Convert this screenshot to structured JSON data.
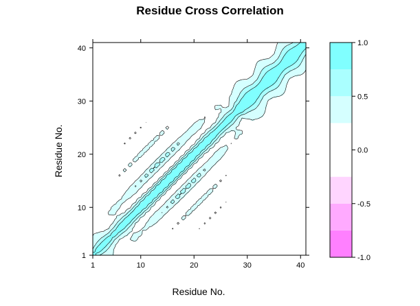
{
  "chart_data": {
    "type": "heatmap",
    "title": "Residue Cross Correlation",
    "xlabel": "Residue No.",
    "ylabel": "Residue No.",
    "x_range": [
      1,
      41
    ],
    "y_range": [
      1,
      41
    ],
    "x_ticks": [
      1,
      10,
      20,
      30,
      40
    ],
    "y_ticks": [
      1,
      10,
      20,
      30,
      40
    ],
    "z_range": [
      -1.0,
      1.0
    ],
    "colorbar": {
      "ticks": [
        1.0,
        0.5,
        0.0,
        -0.5,
        -1.0
      ],
      "tick_labels": [
        "1.0",
        "0.5",
        "0.0",
        "-0.5",
        "-1.0"
      ],
      "levels": [
        {
          "from": -1.0,
          "to": -0.75,
          "color": "#ff80ff"
        },
        {
          "from": -0.75,
          "to": -0.5,
          "color": "#ffaaff"
        },
        {
          "from": -0.5,
          "to": -0.25,
          "color": "#ffd5ff"
        },
        {
          "from": -0.25,
          "to": 0.25,
          "color": "#ffffff"
        },
        {
          "from": 0.25,
          "to": 0.5,
          "color": "#d5ffff"
        },
        {
          "from": 0.5,
          "to": 0.75,
          "color": "#aaffff"
        },
        {
          "from": 0.75,
          "to": 1.0,
          "color": "#80ffff"
        }
      ]
    },
    "contour_color": "#000000",
    "note_on_data": "Symmetric correlation matrix: strong positive (cyan) along the diagonal, alternating positive/negative bands in residues ~8-30, weak correlation elsewhere."
  }
}
